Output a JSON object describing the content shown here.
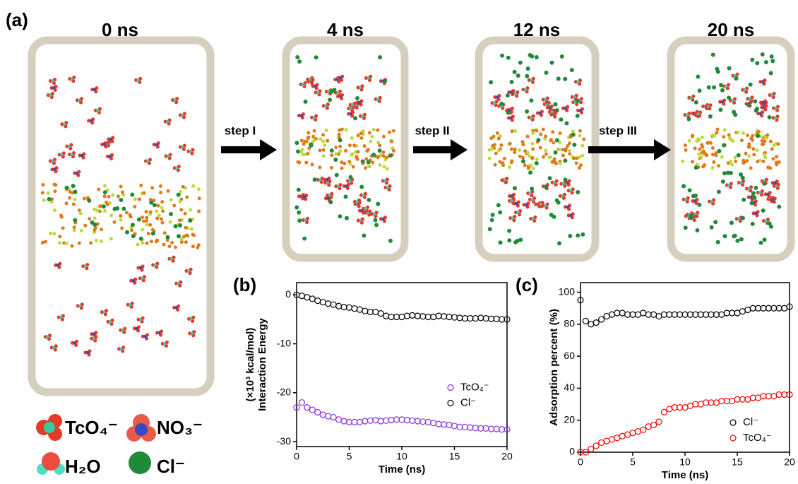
{
  "figure_label": "(a)",
  "snapshots": [
    "0 ns",
    "4 ns",
    "12 ns",
    "20 ns"
  ],
  "steps": [
    "step I",
    "step II",
    "step III"
  ],
  "legend": [
    "TcO₄⁻",
    "NO₃⁻",
    "H₂O",
    "Cl⁻"
  ],
  "chart_data": [
    {
      "type": "scatter",
      "panel_label": "(b)",
      "x_label": "Time (ns)",
      "y_label": [
        "Interaction Energy",
        "(×10³ kcal/mol)"
      ],
      "x": [
        0,
        0.5,
        1,
        1.5,
        2,
        2.5,
        3,
        3.5,
        4,
        4.5,
        5,
        5.5,
        6,
        6.5,
        7,
        7.5,
        8,
        8.5,
        9,
        9.5,
        10,
        10.5,
        11,
        11.5,
        12,
        12.5,
        13,
        13.5,
        14,
        14.5,
        15,
        15.5,
        16,
        16.5,
        17,
        17.5,
        18,
        18.5,
        19,
        19.5,
        20
      ],
      "xlim": [
        0,
        20
      ],
      "xticks": [
        0,
        5,
        10,
        15,
        20
      ],
      "ylim": [
        -31,
        2.5
      ],
      "yticks": [
        -30,
        -20,
        -10,
        0
      ],
      "legend_position": "center right",
      "series": [
        {
          "name": "TcO₄⁻",
          "color": "#8a2be2",
          "values": [
            -23,
            -22,
            -23,
            -23.5,
            -24,
            -24.5,
            -24.8,
            -25,
            -25.5,
            -25.8,
            -26,
            -26,
            -26,
            -25.8,
            -25.7,
            -25.6,
            -25.8,
            -25.7,
            -25.6,
            -25.5,
            -25.5,
            -25.6,
            -25.7,
            -25.8,
            -25.9,
            -26,
            -26.2,
            -26.4,
            -26.5,
            -26.6,
            -26.8,
            -27,
            -27,
            -27.1,
            -27.2,
            -27.3,
            -27.3,
            -27.4,
            -27.4,
            -27.5,
            -27.5
          ]
        },
        {
          "name": "Cl⁻",
          "color": "#000000",
          "values": [
            0,
            -0.2,
            -0.5,
            -0.8,
            -1.2,
            -1.5,
            -1.8,
            -2,
            -2.3,
            -2.5,
            -2.6,
            -2.8,
            -3,
            -3.3,
            -3.5,
            -3.5,
            -3.8,
            -4.3,
            -4.5,
            -4.5,
            -4.5,
            -4.3,
            -4.2,
            -4.3,
            -4.4,
            -4.5,
            -4.5,
            -4.3,
            -4.4,
            -4.5,
            -4.6,
            -4.7,
            -4.8,
            -4.8,
            -4.8,
            -4.7,
            -4.8,
            -4.9,
            -4.9,
            -5,
            -5
          ]
        }
      ]
    },
    {
      "type": "scatter",
      "panel_label": "(c)",
      "x_label": "Time (ns)",
      "y_label": [
        "Adsorption percent (%)"
      ],
      "x": [
        0,
        0.5,
        1,
        1.5,
        2,
        2.5,
        3,
        3.5,
        4,
        4.5,
        5,
        5.5,
        6,
        6.5,
        7,
        7.5,
        8,
        8.5,
        9,
        9.5,
        10,
        10.5,
        11,
        11.5,
        12,
        12.5,
        13,
        13.5,
        14,
        14.5,
        15,
        15.5,
        16,
        16.5,
        17,
        17.5,
        18,
        18.5,
        19,
        19.5,
        20
      ],
      "xlim": [
        0,
        20
      ],
      "xticks": [
        0,
        5,
        10,
        15,
        20
      ],
      "ylim": [
        0,
        106
      ],
      "yticks": [
        0,
        20,
        40,
        60,
        80,
        100
      ],
      "legend_position": "lower right",
      "series": [
        {
          "name": "Cl⁻",
          "color": "#000000",
          "values": [
            95,
            82,
            80,
            81,
            83,
            85,
            86,
            87,
            87,
            86,
            86,
            86,
            87,
            86,
            86,
            85,
            86,
            86,
            86,
            86,
            86,
            86,
            86,
            86,
            86,
            86,
            86,
            86,
            87,
            87,
            87,
            88,
            89,
            90,
            90,
            90,
            90,
            90,
            90,
            90,
            91
          ]
        },
        {
          "name": "TcO₄⁻",
          "color": "#ff0000",
          "values": [
            0,
            0,
            2,
            4,
            6,
            7,
            8,
            9,
            10,
            11,
            12,
            13,
            14,
            16,
            17,
            19,
            25,
            27,
            28,
            28,
            28,
            29,
            30,
            30,
            31,
            31,
            31,
            32,
            32,
            32,
            33,
            33,
            33,
            34,
            34,
            35,
            35,
            35,
            36,
            36,
            36
          ]
        }
      ]
    }
  ]
}
